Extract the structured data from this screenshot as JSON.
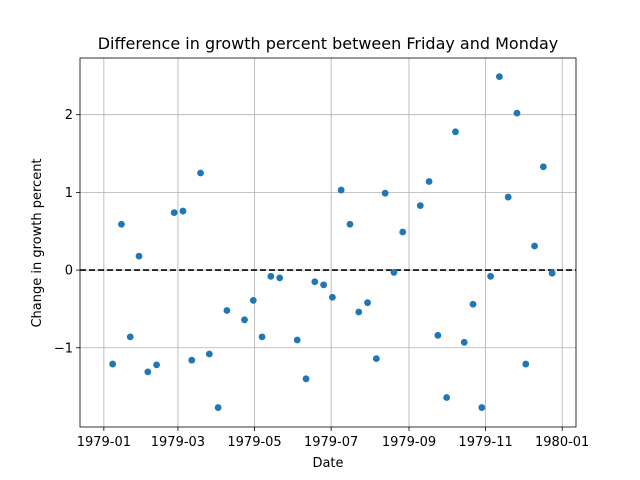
{
  "chart_data": {
    "type": "scatter",
    "title": "Difference in growth percent between Friday and Monday",
    "xlabel": "Date",
    "ylabel": "Change in growth percent",
    "grid": true,
    "reference_line": {
      "y": 0,
      "style": "dashed",
      "color": "#000000"
    },
    "marker_color": "#1f77b4",
    "xlim": [
      "1978-12-13",
      "1980-01-12"
    ],
    "ylim": [
      -2.02,
      2.73
    ],
    "x_ticks": [
      "1979-01-01",
      "1979-03-01",
      "1979-05-01",
      "1979-07-01",
      "1979-09-01",
      "1979-11-01",
      "1980-01-01"
    ],
    "x_tick_labels": [
      "1979-01",
      "1979-03",
      "1979-05",
      "1979-07",
      "1979-09",
      "1979-11",
      "1980-01"
    ],
    "y_ticks": [
      -1,
      0,
      1,
      2
    ],
    "y_tick_labels": [
      "−1",
      "0",
      "1",
      "2"
    ],
    "points": [
      {
        "x": "1979-01-08",
        "y": -1.21
      },
      {
        "x": "1979-01-15",
        "y": 0.59
      },
      {
        "x": "1979-01-22",
        "y": -0.86
      },
      {
        "x": "1979-01-29",
        "y": 0.18
      },
      {
        "x": "1979-02-05",
        "y": -1.31
      },
      {
        "x": "1979-02-12",
        "y": -1.22
      },
      {
        "x": "1979-02-26",
        "y": 0.74
      },
      {
        "x": "1979-03-05",
        "y": 0.76
      },
      {
        "x": "1979-03-12",
        "y": -1.16
      },
      {
        "x": "1979-03-19",
        "y": 1.25
      },
      {
        "x": "1979-03-26",
        "y": -1.08
      },
      {
        "x": "1979-04-02",
        "y": -1.77
      },
      {
        "x": "1979-04-09",
        "y": -0.52
      },
      {
        "x": "1979-04-23",
        "y": -0.64
      },
      {
        "x": "1979-04-30",
        "y": -0.39
      },
      {
        "x": "1979-05-07",
        "y": -0.86
      },
      {
        "x": "1979-05-14",
        "y": -0.08
      },
      {
        "x": "1979-05-21",
        "y": -0.1
      },
      {
        "x": "1979-06-04",
        "y": -0.9
      },
      {
        "x": "1979-06-11",
        "y": -1.4
      },
      {
        "x": "1979-06-18",
        "y": -0.15
      },
      {
        "x": "1979-06-25",
        "y": -0.19
      },
      {
        "x": "1979-07-02",
        "y": -0.35
      },
      {
        "x": "1979-07-09",
        "y": 1.03
      },
      {
        "x": "1979-07-16",
        "y": 0.59
      },
      {
        "x": "1979-07-23",
        "y": -0.54
      },
      {
        "x": "1979-07-30",
        "y": -0.42
      },
      {
        "x": "1979-08-06",
        "y": -1.14
      },
      {
        "x": "1979-08-13",
        "y": 0.99
      },
      {
        "x": "1979-08-20",
        "y": -0.03
      },
      {
        "x": "1979-08-27",
        "y": 0.49
      },
      {
        "x": "1979-09-10",
        "y": 0.83
      },
      {
        "x": "1979-09-17",
        "y": 1.14
      },
      {
        "x": "1979-09-24",
        "y": -0.84
      },
      {
        "x": "1979-10-01",
        "y": -1.64
      },
      {
        "x": "1979-10-08",
        "y": 1.78
      },
      {
        "x": "1979-10-15",
        "y": -0.93
      },
      {
        "x": "1979-10-22",
        "y": -0.44
      },
      {
        "x": "1979-10-29",
        "y": -1.77
      },
      {
        "x": "1979-11-05",
        "y": -0.08
      },
      {
        "x": "1979-11-12",
        "y": 2.49
      },
      {
        "x": "1979-11-19",
        "y": 0.94
      },
      {
        "x": "1979-11-26",
        "y": 2.02
      },
      {
        "x": "1979-12-03",
        "y": -1.21
      },
      {
        "x": "1979-12-10",
        "y": 0.31
      },
      {
        "x": "1979-12-17",
        "y": 1.33
      },
      {
        "x": "1979-12-24",
        "y": -0.04
      }
    ]
  }
}
